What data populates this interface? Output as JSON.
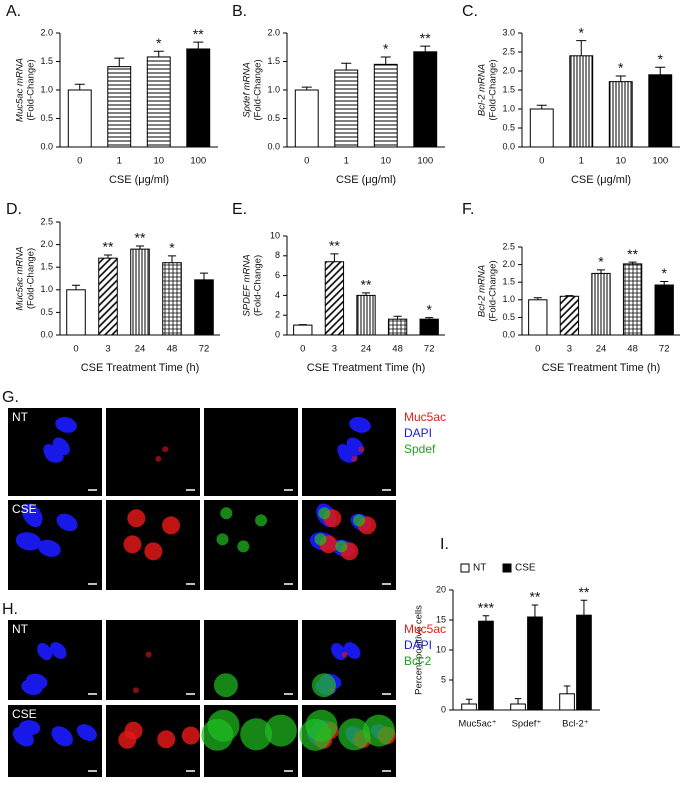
{
  "chart_data": [
    {
      "type": "bar",
      "panel_label": "A.",
      "ylabel": [
        "Muc5ac mRNA",
        "(Fold-Change)"
      ],
      "xlabel": "CSE (μg/ml)",
      "categories": [
        "0",
        "1",
        "10",
        "100"
      ],
      "values": [
        1.0,
        1.41,
        1.58,
        1.72
      ],
      "errors": [
        0.1,
        0.15,
        0.1,
        0.12
      ],
      "annotations": [
        null,
        null,
        "*",
        "**"
      ],
      "patterns": [
        "none",
        "hlines",
        "hlines",
        "solid"
      ],
      "ylim": [
        0,
        2
      ],
      "yticks": [
        {
          "value": 0,
          "label": "0.0"
        },
        0.5,
        {
          "value": 1,
          "label": "1.0"
        },
        1.5,
        {
          "value": 2,
          "label": "2.0"
        }
      ]
    },
    {
      "type": "bar",
      "panel_label": "B.",
      "ylabel": [
        "Spdef mRNA",
        "(Fold-Change)"
      ],
      "xlabel": "CSE (μg/ml)",
      "categories": [
        "0",
        "1",
        "10",
        "100"
      ],
      "values": [
        1.0,
        1.35,
        1.45,
        1.67
      ],
      "errors": [
        0.05,
        0.12,
        0.13,
        0.1
      ],
      "annotations": [
        null,
        null,
        "*",
        "**"
      ],
      "patterns": [
        "none",
        "hlines",
        "hlines",
        "solid"
      ],
      "ylim": [
        0,
        2
      ],
      "yticks": [
        {
          "value": 0,
          "label": "0.0"
        },
        0.5,
        {
          "value": 1,
          "label": "1.0"
        },
        1.5,
        {
          "value": 2,
          "label": "2.0"
        }
      ]
    },
    {
      "type": "bar",
      "panel_label": "C.",
      "ylabel": [
        "Bcl-2 mRNA",
        "(Fold-Change)"
      ],
      "xlabel": "CSE (μg/ml)",
      "categories": [
        "0",
        "1",
        "10",
        "100"
      ],
      "values": [
        1.0,
        2.4,
        1.72,
        1.9
      ],
      "errors": [
        0.1,
        0.4,
        0.15,
        0.2
      ],
      "annotations": [
        null,
        "*",
        "*",
        "*"
      ],
      "patterns": [
        "none",
        "vlines",
        "vlines",
        "solid"
      ],
      "ylim": [
        0,
        3
      ],
      "yticks": [
        {
          "value": 0,
          "label": "0.0"
        },
        0.5,
        {
          "value": 1,
          "label": "1.0"
        },
        1.5,
        {
          "value": 2,
          "label": "2.0"
        },
        2.5,
        {
          "value": 3,
          "label": "3.0"
        }
      ]
    },
    {
      "type": "bar",
      "panel_label": "D.",
      "ylabel": [
        "Muc5ac mRNA",
        "(Fold-Change)"
      ],
      "xlabel": "CSE Treatment Time (h)",
      "categories": [
        "0",
        "3",
        "24",
        "48",
        "72"
      ],
      "values": [
        1.0,
        1.7,
        1.9,
        1.6,
        1.22
      ],
      "errors": [
        0.1,
        0.07,
        0.07,
        0.15,
        0.15
      ],
      "annotations": [
        null,
        "**",
        "**",
        "*",
        null
      ],
      "patterns": [
        "none",
        "diag",
        "vlines",
        "grid",
        "solid"
      ],
      "ylim": [
        0,
        2.5
      ],
      "yticks": [
        {
          "value": 0,
          "label": "0.0"
        },
        0.5,
        {
          "value": 1,
          "label": "1.0"
        },
        1.5,
        {
          "value": 2,
          "label": "2.0"
        },
        2.5
      ]
    },
    {
      "type": "bar",
      "panel_label": "E.",
      "ylabel": [
        "SPDEF mRNA",
        "(Fold-Change)"
      ],
      "xlabel": "CSE Treatment Time (h)",
      "categories": [
        "0",
        "3",
        "24",
        "48",
        "72"
      ],
      "values": [
        1.0,
        7.4,
        4.0,
        1.6,
        1.6
      ],
      "errors": [
        0.05,
        0.8,
        0.25,
        0.3,
        0.15
      ],
      "annotations": [
        null,
        "**",
        "**",
        null,
        "*"
      ],
      "patterns": [
        "none",
        "diag",
        "vlines",
        "grid",
        "solid"
      ],
      "ylim": [
        0,
        10
      ],
      "yticks": [
        0,
        2,
        4,
        6,
        8,
        10
      ]
    },
    {
      "type": "bar",
      "panel_label": "F.",
      "ylabel": [
        "Bcl-2 mRNA",
        "(Fold-Change)"
      ],
      "xlabel": "CSE Treatment Time (h)",
      "categories": [
        "0",
        "3",
        "24",
        "48",
        "72"
      ],
      "values": [
        1.0,
        1.1,
        1.75,
        2.02,
        1.42
      ],
      "errors": [
        0.06,
        0.02,
        0.1,
        0.05,
        0.1
      ],
      "annotations": [
        null,
        null,
        "*",
        "**",
        "*"
      ],
      "patterns": [
        "none",
        "diag",
        "vlines",
        "grid",
        "solid"
      ],
      "ylim": [
        0,
        2.5
      ],
      "yticks": [
        {
          "value": 0,
          "label": "0.0"
        },
        0.5,
        {
          "value": 1,
          "label": "1.0"
        },
        1.5,
        {
          "value": 2,
          "label": "2.0"
        },
        2.5
      ]
    },
    {
      "type": "bar",
      "panel_label": "I.",
      "ylabel": [
        "Percent-positive cells"
      ],
      "legend": "top-left",
      "categories": [
        "Muc5ac⁺",
        "Spdef⁺",
        "Bcl-2⁺"
      ],
      "series": [
        {
          "name": "NT",
          "color": "#ffffff",
          "values": [
            1.0,
            1.0,
            2.7
          ],
          "errors": [
            0.8,
            0.9,
            1.3
          ]
        },
        {
          "name": "CSE",
          "color": "#000000",
          "values": [
            14.8,
            15.5,
            15.8
          ],
          "errors": [
            0.9,
            2.0,
            2.5
          ],
          "annotations": [
            "***",
            "**",
            "**"
          ]
        }
      ],
      "ylim": [
        0,
        20
      ],
      "yticks": [
        0,
        5,
        10,
        15,
        20
      ]
    }
  ],
  "image_panels": [
    {
      "label": "G.",
      "rows": [
        "NT",
        "CSE"
      ],
      "legend": [
        {
          "text": "Muc5ac",
          "color": "#e0201b"
        },
        {
          "text": "DAPI",
          "color": "#1a1adc"
        },
        {
          "text": "Spdef",
          "color": "#22a022"
        }
      ]
    },
    {
      "label": "H.",
      "rows": [
        "NT",
        "CSE"
      ],
      "legend": [
        {
          "text": "Muc5ac",
          "color": "#e0201b"
        },
        {
          "text": "DAPI",
          "color": "#1a1adc"
        },
        {
          "text": "Bcl-2",
          "color": "#22a022"
        }
      ]
    }
  ]
}
